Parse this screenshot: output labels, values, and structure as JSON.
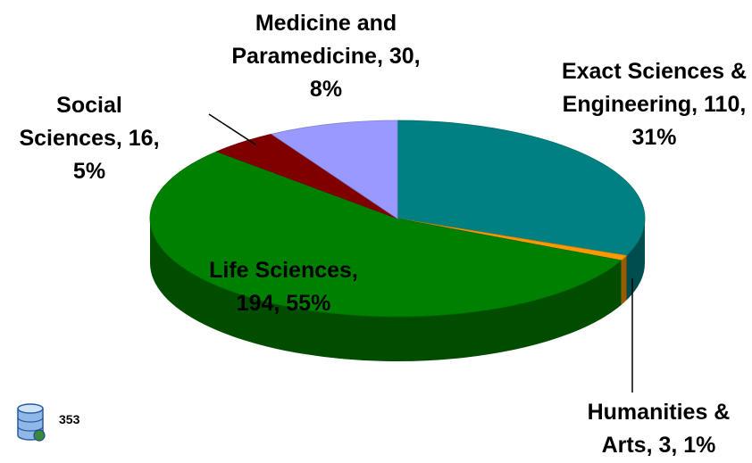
{
  "chart_data": {
    "type": "pie3d",
    "categories": [
      "Exact Sciences & Engineering",
      "Humanities & Arts",
      "Life Sciences",
      "Social Sciences",
      "Medicine and Paramedicine"
    ],
    "values": [
      110,
      3,
      194,
      16,
      30
    ],
    "value_labels": [
      "Exact Sciences & Engineering, 110, 31%",
      "Humanities & Arts, 3, 1%",
      "Life Sciences, 194, 55%",
      "Social Sciences, 16, 5%",
      "Medicine and Paramedicine, 30, 8%"
    ],
    "colors": [
      "#008080",
      "#ff9900",
      "#008000",
      "#800000",
      "#9999ff"
    ],
    "total": 353
  }
}
